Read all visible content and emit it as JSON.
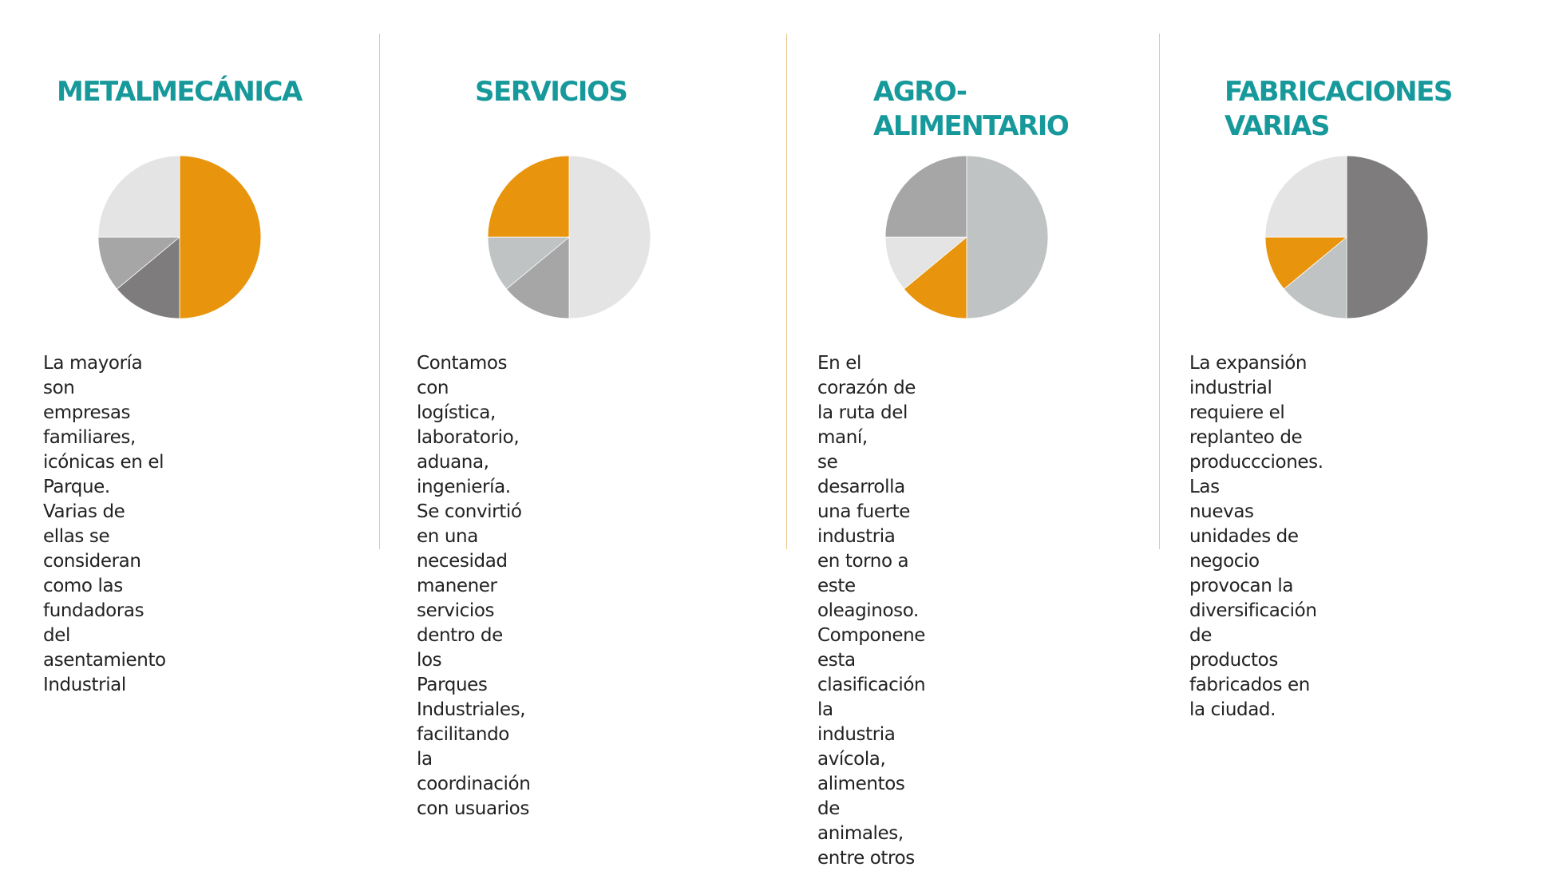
{
  "colors": {
    "title": "#17999b",
    "orange": "#e8950d",
    "light_gray": "#e4e4e4",
    "mid_gray": "#a6a6a6",
    "dark_gray": "#7f7c7d",
    "blue_gray": "#bfc3c4",
    "divider": "#ecc78c",
    "text": "#222222"
  },
  "columns": [
    {
      "title": "METALMECÁNICA",
      "text": "La mayoría son empresas\nfamiliares, icónicas en el Parque.\nVarias de ellas se consideran\ncomo las fundadoras del\nasentamiento Industrial"
    },
    {
      "title": "SERVICIOS",
      "text": "Contamos con logística, laboratorio,\naduana, ingeniería.\nSe convirtió en una necesidad\nmanener servicios dentro de los\nParques Industriales, facilitando la\ncoordinación con usuarios"
    },
    {
      "title": "AGRO-\nALIMENTARIO",
      "text": "En el corazón de la ruta del maní,\nse desarrolla una fuerte industria\nen torno a este oleaginoso.\nComponene esta clasificación la\nindustria avícola, alimentos de\nanimales, entre otros"
    },
    {
      "title": "FABRICACIONES\nVARIAS",
      "text": "La expansión industrial requiere el\nreplanteo de produccciones. Las\nnuevas unidades de negocio\nprovocan la diversificación de\nproductos fabricados en la ciudad."
    }
  ],
  "chart_data": [
    {
      "type": "pie",
      "title": "METALMECÁNICA",
      "slices": [
        {
          "value": 50,
          "color": "#e8950d"
        },
        {
          "value": 14,
          "color": "#7f7c7d"
        },
        {
          "value": 11,
          "color": "#a6a6a6"
        },
        {
          "value": 25,
          "color": "#e4e4e4"
        }
      ]
    },
    {
      "type": "pie",
      "title": "SERVICIOS",
      "slices": [
        {
          "value": 50,
          "color": "#e4e4e4"
        },
        {
          "value": 14,
          "color": "#a6a6a6"
        },
        {
          "value": 11,
          "color": "#bfc3c4"
        },
        {
          "value": 25,
          "color": "#e8950d"
        }
      ]
    },
    {
      "type": "pie",
      "title": "AGRO-ALIMENTARIO",
      "slices": [
        {
          "value": 50,
          "color": "#bfc3c4"
        },
        {
          "value": 14,
          "color": "#e8950d"
        },
        {
          "value": 11,
          "color": "#e4e4e4"
        },
        {
          "value": 25,
          "color": "#a6a6a6"
        }
      ]
    },
    {
      "type": "pie",
      "title": "FABRICACIONES VARIAS",
      "slices": [
        {
          "value": 50,
          "color": "#7f7c7d"
        },
        {
          "value": 14,
          "color": "#bfc3c4"
        },
        {
          "value": 11,
          "color": "#e8950d"
        },
        {
          "value": 25,
          "color": "#e4e4e4"
        }
      ]
    }
  ]
}
